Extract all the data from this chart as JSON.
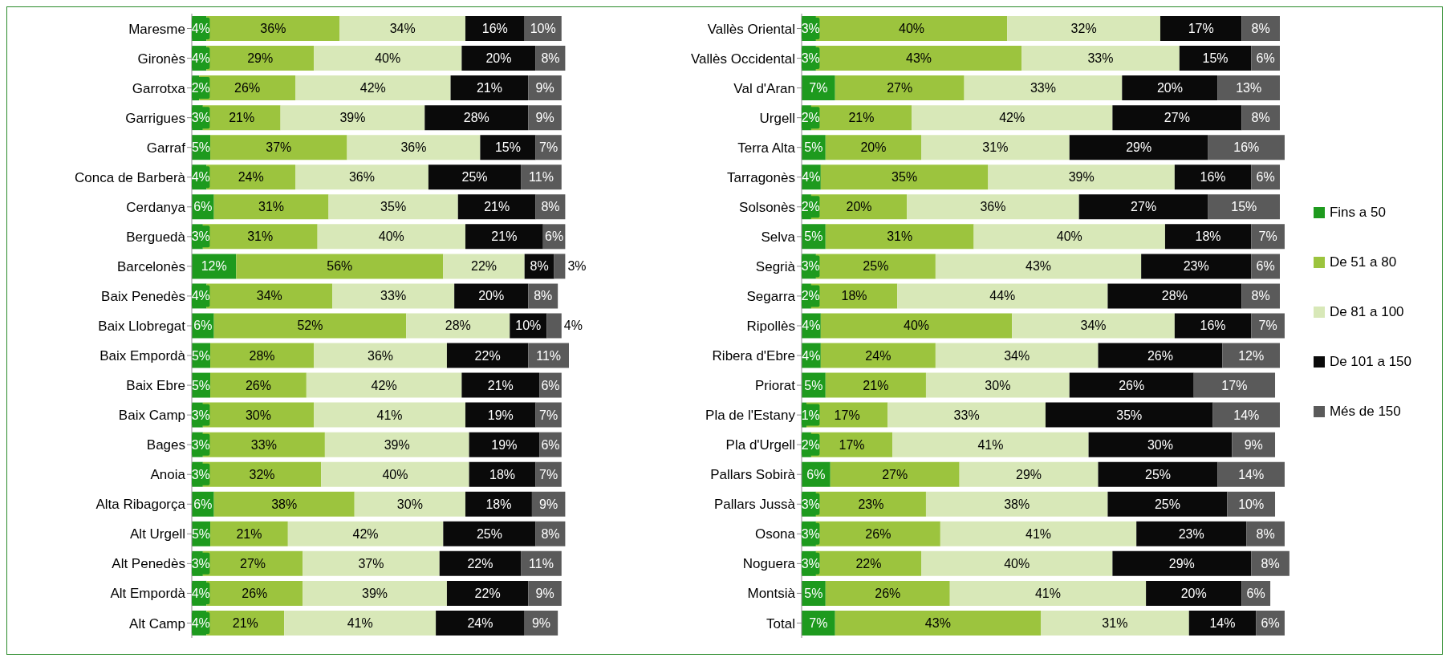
{
  "chart_data": [
    {
      "type": "bar",
      "orientation": "horizontal",
      "stacked": true,
      "legend": false,
      "categories": [
        "Maresme",
        "Gironès",
        "Garrotxa",
        "Garrigues",
        "Garraf",
        "Conca de Barberà",
        "Cerdanya",
        "Berguedà",
        "Barcelonès",
        "Baix Penedès",
        "Baix Llobregat",
        "Baix Empordà",
        "Baix Ebre",
        "Baix Camp",
        "Bages",
        "Anoia",
        "Alta Ribagorça",
        "Alt Urgell",
        "Alt Penedès",
        "Alt Empordà",
        "Alt Camp"
      ],
      "series": [
        {
          "color": "#1e9a1e",
          "values": [
            4,
            4,
            2,
            3,
            5,
            4,
            6,
            3,
            12,
            4,
            6,
            5,
            5,
            3,
            3,
            3,
            6,
            5,
            3,
            4,
            4
          ],
          "value_labels": [
            "4%",
            "4%",
            "2%",
            "3%",
            "5%",
            "4%",
            "6%",
            "3%",
            "12%",
            "4%",
            "6%",
            "5%",
            "5%",
            "3%",
            "3%",
            "3%",
            "6%",
            "5%",
            "3%",
            "4%",
            "4%"
          ]
        },
        {
          "color": "#9cc43e",
          "values": [
            36,
            29,
            26,
            21,
            37,
            24,
            31,
            31,
            56,
            34,
            52,
            28,
            26,
            30,
            33,
            32,
            38,
            21,
            27,
            26,
            21
          ],
          "value_labels": [
            "36%",
            "29%",
            "26%",
            "21%",
            "37%",
            "24%",
            "31%",
            "31%",
            "56%",
            "34%",
            "52%",
            "28%",
            "26%",
            "30%",
            "33%",
            "32%",
            "38%",
            "21%",
            "27%",
            "26%",
            "21%"
          ]
        },
        {
          "color": "#d8e8b8",
          "values": [
            34,
            40,
            42,
            39,
            36,
            36,
            35,
            40,
            22,
            33,
            28,
            36,
            42,
            41,
            39,
            40,
            30,
            42,
            37,
            39,
            41
          ],
          "value_labels": [
            "34%",
            "40%",
            "42%",
            "39%",
            "36%",
            "36%",
            "35%",
            "40%",
            "22%",
            "33%",
            "28%",
            "36%",
            "42%",
            "41%",
            "39%",
            "40%",
            "30%",
            "42%",
            "37%",
            "39%",
            "41%"
          ]
        },
        {
          "color": "#0a0a0a",
          "values": [
            16,
            20,
            21,
            28,
            15,
            25,
            21,
            21,
            8,
            20,
            10,
            22,
            21,
            19,
            19,
            18,
            18,
            25,
            22,
            22,
            24
          ],
          "value_labels": [
            "16%",
            "20%",
            "21%",
            "28%",
            "15%",
            "25%",
            "21%",
            "21%",
            "8%",
            "20%",
            "10%",
            "22%",
            "21%",
            "19%",
            "19%",
            "18%",
            "18%",
            "25%",
            "22%",
            "22%",
            "24%"
          ]
        },
        {
          "color": "#5a5a5a",
          "values": [
            10,
            8,
            9,
            9,
            7,
            11,
            8,
            6,
            3,
            8,
            4,
            11,
            6,
            7,
            6,
            7,
            9,
            8,
            11,
            9,
            9
          ],
          "value_labels": [
            "10%",
            "8%",
            "9%",
            "9%",
            "7%",
            "11%",
            "8%",
            "6%",
            "3%",
            "8%",
            "4%",
            "11%",
            "6%",
            "7%",
            "6%",
            "7%",
            "9%",
            "8%",
            "11%",
            "9%",
            "9%"
          ]
        }
      ]
    },
    {
      "type": "bar",
      "orientation": "horizontal",
      "stacked": true,
      "legend": "right",
      "categories": [
        "Vallès Oriental",
        "Vallès Occidental",
        "Val d'Aran",
        "Urgell",
        "Terra Alta",
        "Tarragonès",
        "Solsonès",
        "Selva",
        "Segrià",
        "Segarra",
        "Ripollès",
        "Ribera d'Ebre",
        "Priorat",
        "Pla de l'Estany",
        "Pla d'Urgell",
        "Pallars Sobirà",
        "Pallars Jussà",
        "Osona",
        "Noguera",
        "Montsià",
        "Total"
      ],
      "series": [
        {
          "name": "Fins a 50",
          "color": "#1e9a1e",
          "values": [
            3,
            3,
            7,
            2,
            5,
            4,
            2,
            5,
            3,
            2,
            4,
            4,
            5,
            1,
            2,
            6,
            3,
            3,
            3,
            5,
            7
          ],
          "value_labels": [
            "3%",
            "3%",
            "7%",
            "2%",
            "5%",
            "4%",
            "2%",
            "5%",
            "3%",
            "2%",
            "4%",
            "4%",
            "5%",
            "1%",
            "2%",
            "6%",
            "3%",
            "3%",
            "3%",
            "5%",
            "7%"
          ]
        },
        {
          "name": "De 51 a 80",
          "color": "#9cc43e",
          "values": [
            40,
            43,
            27,
            21,
            20,
            35,
            20,
            31,
            25,
            18,
            40,
            24,
            21,
            17,
            17,
            27,
            23,
            26,
            22,
            26,
            43
          ],
          "value_labels": [
            "40%",
            "43%",
            "27%",
            "21%",
            "20%",
            "35%",
            "20%",
            "31%",
            "25%",
            "18%",
            "40%",
            "24%",
            "21%",
            "17%",
            "17%",
            "27%",
            "23%",
            "26%",
            "22%",
            "26%",
            "43%"
          ]
        },
        {
          "name": "De 81 a 100",
          "color": "#d8e8b8",
          "values": [
            32,
            33,
            33,
            42,
            31,
            39,
            36,
            40,
            43,
            44,
            34,
            34,
            30,
            33,
            41,
            29,
            38,
            41,
            40,
            41,
            31
          ],
          "value_labels": [
            "32%",
            "33%",
            "33%",
            "42%",
            "31%",
            "39%",
            "36%",
            "40%",
            "43%",
            "44%",
            "34%",
            "34%",
            "30%",
            "33%",
            "41%",
            "29%",
            "38%",
            "41%",
            "40%",
            "41%",
            "31%"
          ]
        },
        {
          "name": "De 101 a 150",
          "color": "#0a0a0a",
          "values": [
            17,
            15,
            20,
            27,
            29,
            16,
            27,
            18,
            23,
            28,
            16,
            26,
            26,
            35,
            30,
            25,
            25,
            23,
            29,
            20,
            14
          ],
          "value_labels": [
            "17%",
            "15%",
            "20%",
            "27%",
            "29%",
            "16%",
            "27%",
            "18%",
            "23%",
            "28%",
            "16%",
            "26%",
            "26%",
            "35%",
            "30%",
            "25%",
            "25%",
            "23%",
            "29%",
            "20%",
            "14%"
          ]
        },
        {
          "name": "Més de 150",
          "color": "#5a5a5a",
          "values": [
            8,
            6,
            13,
            8,
            16,
            6,
            15,
            7,
            6,
            8,
            7,
            12,
            17,
            14,
            9,
            14,
            10,
            8,
            8,
            6,
            6
          ],
          "value_labels": [
            "8%",
            "6%",
            "13%",
            "8%",
            "16%",
            "6%",
            "15%",
            "7%",
            "6%",
            "8%",
            "7%",
            "12%",
            "17%",
            "14%",
            "9%",
            "14%",
            "10%",
            "8%",
            "8%",
            "6%",
            "6%"
          ]
        }
      ]
    }
  ]
}
